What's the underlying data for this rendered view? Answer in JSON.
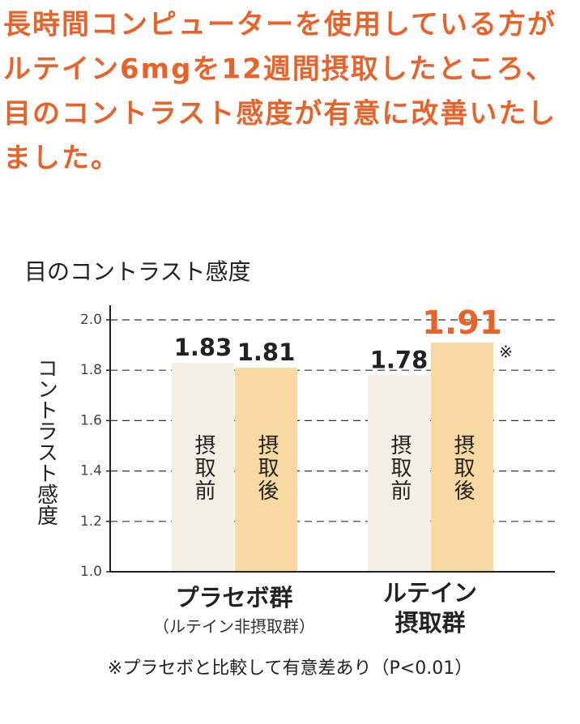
{
  "headline_lines": [
    "長時間コンピューターを使用している方が",
    "ルテイン6mgを12週間摂取したところ、",
    "目のコントラスト感度が有意に改善いたし",
    "ました。"
  ],
  "chart_data": {
    "type": "bar",
    "title": "目のコントラスト感度",
    "y_label": "コントラスト感度",
    "categories": [
      "プラセボ群",
      "ルテイン摂取群"
    ],
    "category_note": "（ルテイン非摂取群）",
    "series": [
      {
        "name": "摂取前",
        "color": "#f3efe5",
        "values": [
          1.83,
          1.78
        ],
        "label_colors": [
          "#222222",
          "#222222"
        ]
      },
      {
        "name": "摂取後",
        "color": "#f8d9a1",
        "values": [
          1.81,
          1.91
        ],
        "label_colors": [
          "#222222",
          "#e8632a"
        ]
      }
    ],
    "ylim": [
      1,
      2
    ],
    "yticks": [
      {
        "value": 1,
        "label": "1.0"
      },
      1.2,
      1.4,
      1.6,
      1.8,
      {
        "value": 2,
        "label": "2.0"
      }
    ],
    "grid": true,
    "significance_mark": "※",
    "footnote": "※プラセボと比較して有意差あり（P<0.01）"
  }
}
